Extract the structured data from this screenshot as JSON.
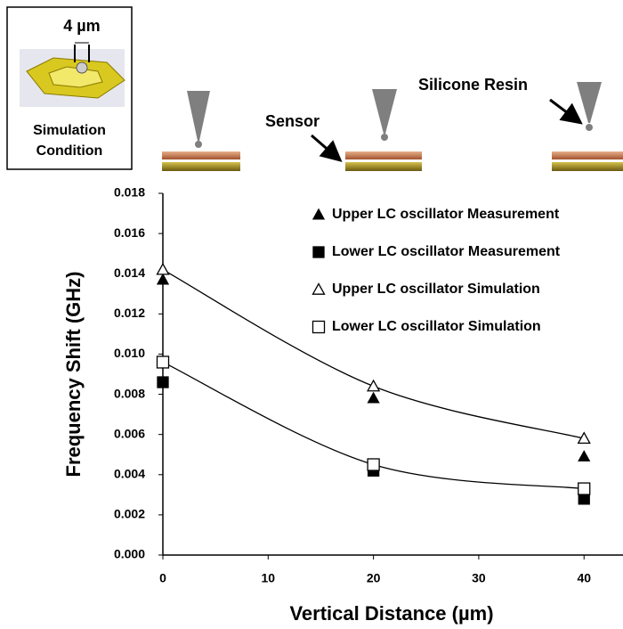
{
  "chart_data": {
    "type": "scatter",
    "x_label": "Vertical Distance (µm)",
    "y_label": "Frequency Shift (GHz)",
    "x": [
      0,
      20,
      40
    ],
    "series": [
      {
        "name": "Upper LC oscillator Measurement",
        "color": "#000000",
        "marker": "filled-triangle",
        "values": [
          0.0137,
          0.0078,
          0.0049
        ]
      },
      {
        "name": "Lower LC oscillator Measurement",
        "color": "#000000",
        "marker": "filled-square",
        "values": [
          0.0086,
          0.0042,
          0.0028
        ]
      },
      {
        "name": "Upper LC oscillator Simulation",
        "color": "#000000",
        "marker": "open-triangle",
        "values": [
          0.0142,
          0.0084,
          0.0058
        ],
        "trend": true
      },
      {
        "name": "Lower LC oscillator Simulation",
        "color": "#000000",
        "marker": "open-square",
        "values": [
          0.0096,
          0.0045,
          0.0033
        ],
        "trend": true
      }
    ],
    "xlim": [
      0,
      43.7
    ],
    "xticks": [
      0,
      10,
      20,
      30,
      40
    ],
    "ylim": [
      0,
      0.018
    ],
    "yticks": [
      {
        "value": 0,
        "label": "0.000"
      },
      {
        "value": 0.002,
        "label": "0.002"
      },
      {
        "value": 0.004,
        "label": "0.004"
      },
      {
        "value": 0.006,
        "label": "0.006"
      },
      {
        "value": 0.008,
        "label": "0.008"
      },
      {
        "value": 0.01,
        "label": "0.010"
      },
      {
        "value": 0.012,
        "label": "0.012"
      },
      {
        "value": 0.014,
        "label": "0.014"
      },
      {
        "value": 0.016,
        "label": "0.016"
      },
      {
        "value": 0.018,
        "label": "0.018"
      }
    ],
    "annotations": {
      "inset_dimension": "4 µm",
      "inset_caption_1": "Simulation",
      "inset_caption_2": "Condition",
      "sensor": "Sensor",
      "resin": "Silicone Resin"
    }
  }
}
